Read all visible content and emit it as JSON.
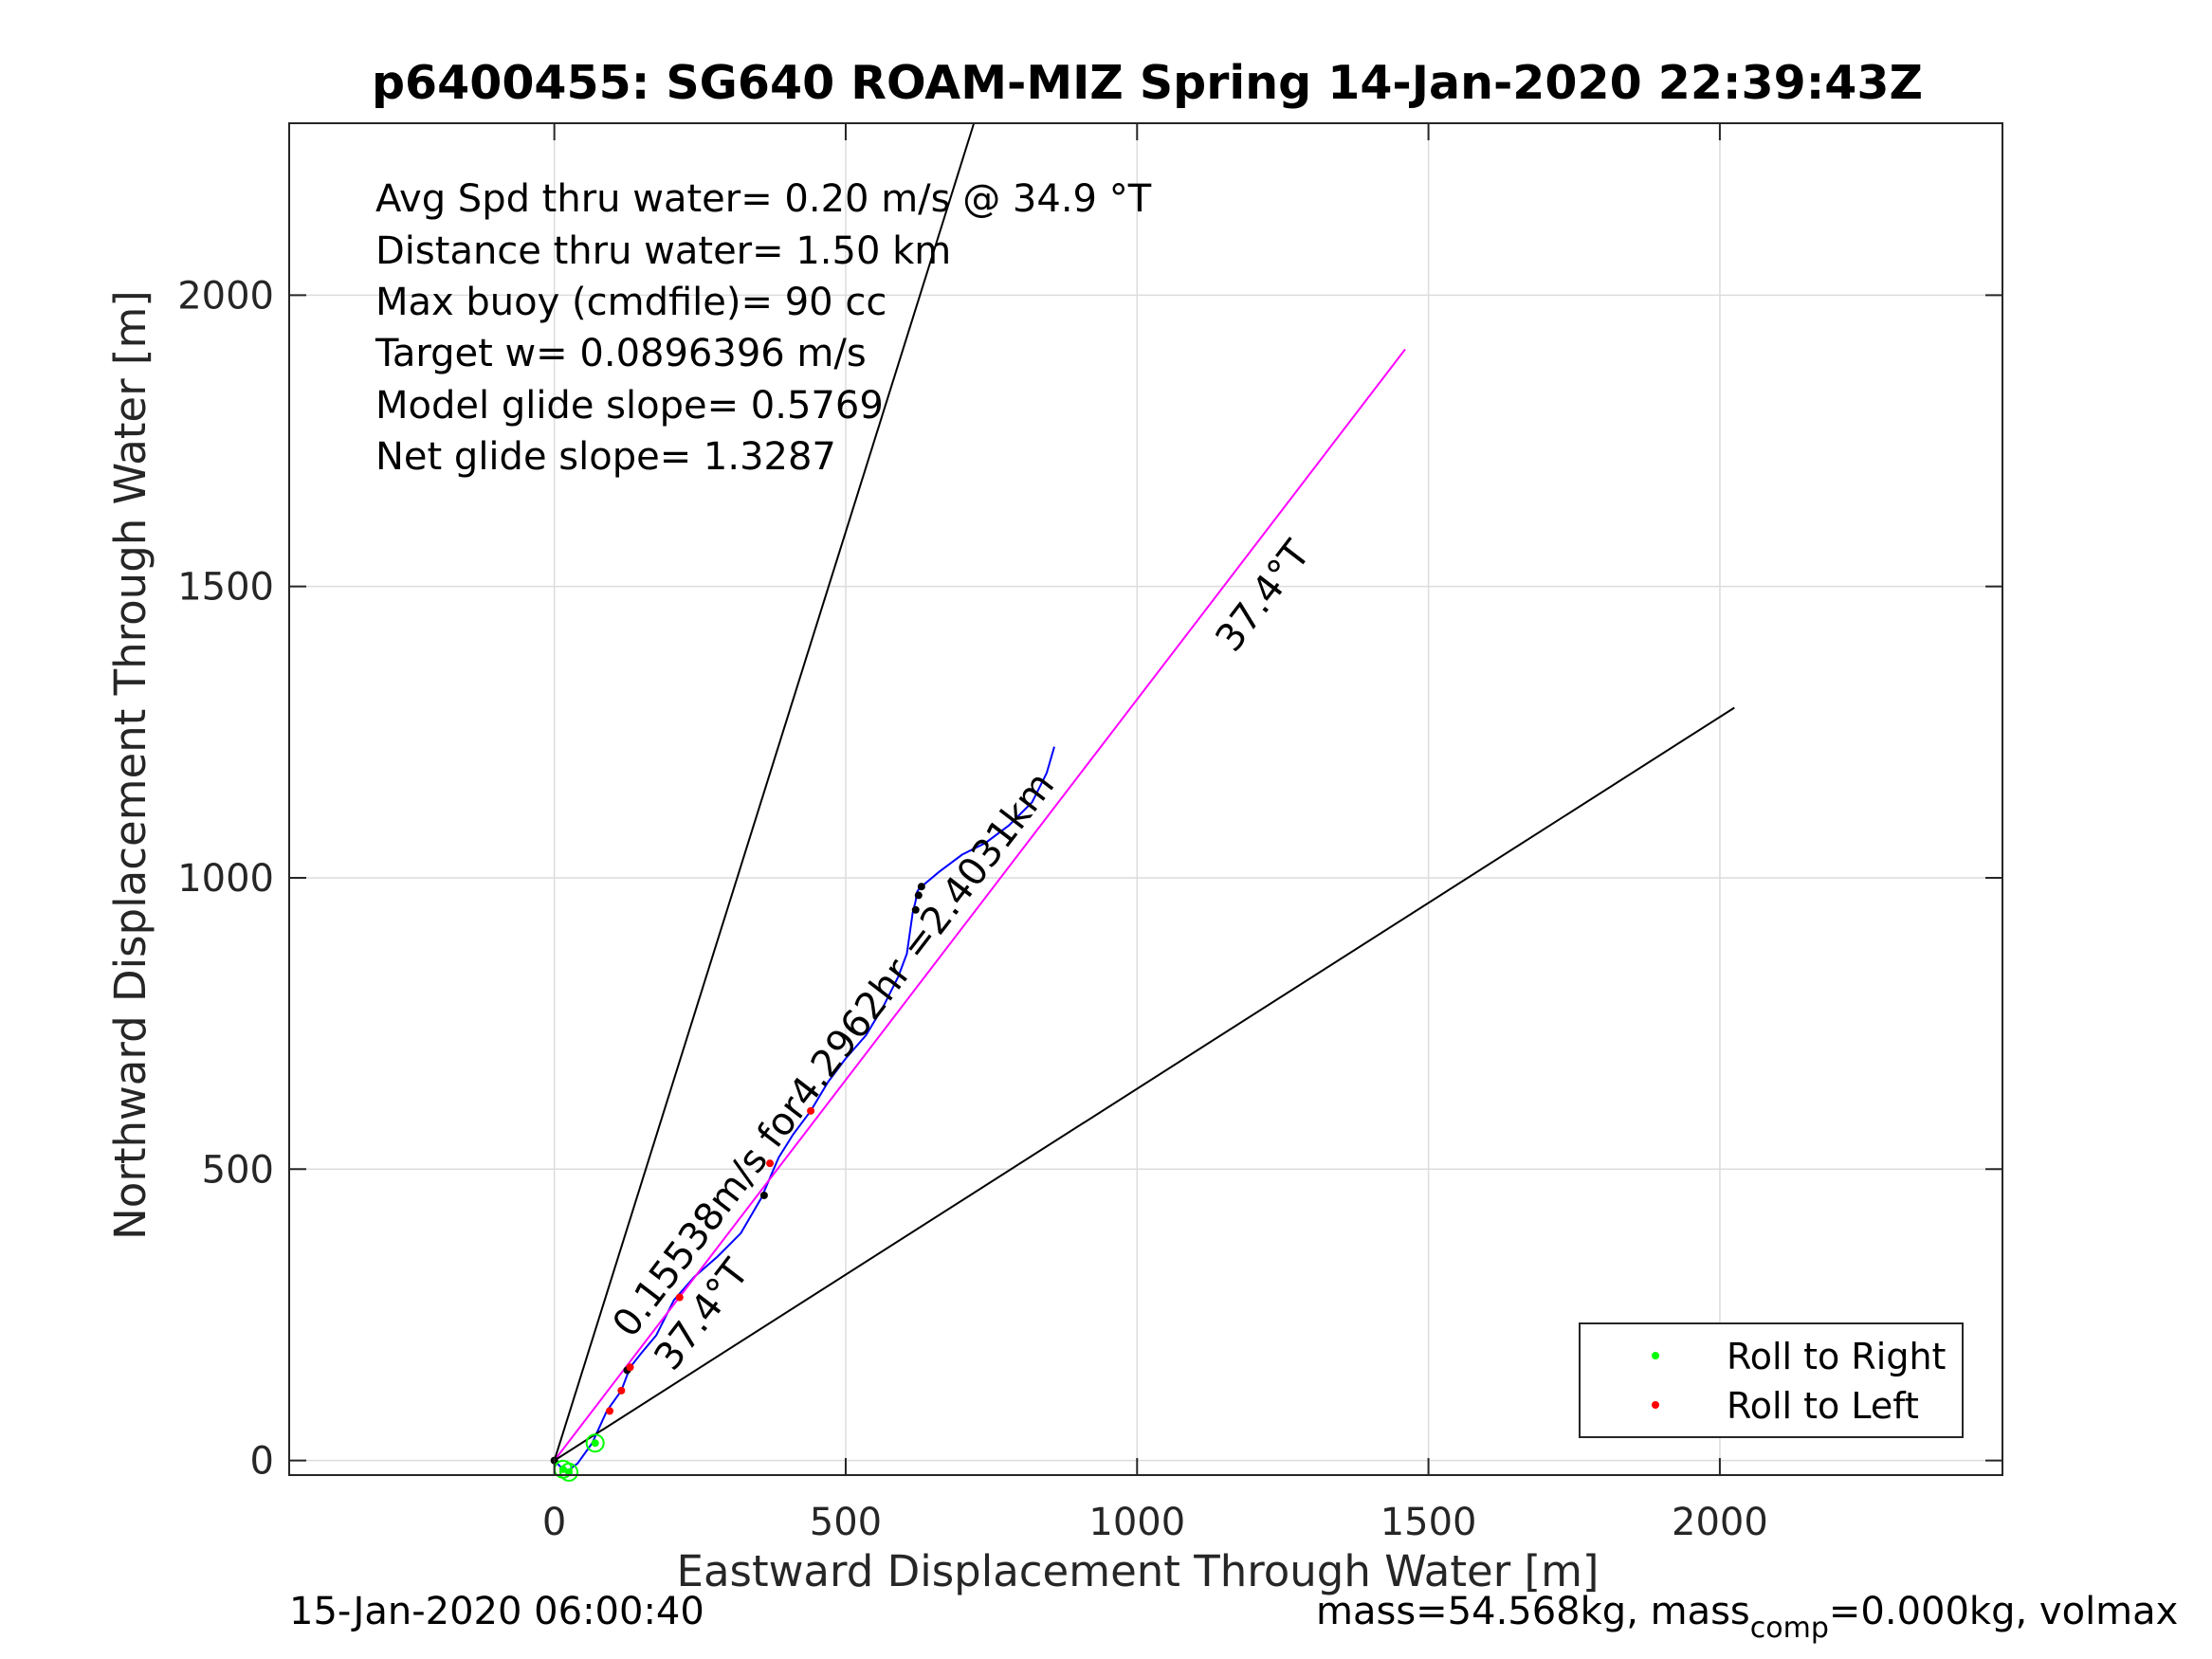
{
  "chart_data": {
    "type": "line",
    "title": "p6400455: SG640 ROAM-MIZ Spring 14-Jan-2020 22:39:43Z",
    "xlabel": "Eastward Displacement Through Water [m]",
    "ylabel": "Northward Displacement Through Water [m]",
    "xlim": [
      -455,
      2485
    ],
    "ylim": [
      -25,
      2295
    ],
    "xticks": [
      0,
      500,
      1000,
      1500,
      2000
    ],
    "yticks": [
      0,
      500,
      1000,
      1500,
      2000
    ],
    "grid": true,
    "legend_position": "bottom-right",
    "legend": [
      {
        "label": "Roll to Right",
        "color": "#00ff00"
      },
      {
        "label": "Roll to Left",
        "color": "#ff0000"
      }
    ],
    "annotations": [
      "Avg Spd thru water=  0.20 m/s @  34.9 °T",
      "Distance thru water=  1.50 km",
      "Max buoy (cmdfile)= 90 cc",
      "Target w= 0.0896396 m/s",
      "Model glide slope= 0.5769",
      "Net glide slope= 1.3287"
    ],
    "line_labels": {
      "heading_upper": "37.4°T",
      "heading_lower": "37.4°T",
      "speed_label": "0.15538m/s for4.2962hr =2.4031km"
    },
    "series": [
      {
        "color": "#0000ff",
        "x": [
          0,
          10,
          20,
          40,
          65,
          90,
          115,
          130,
          150,
          175,
          205,
          240,
          280,
          320,
          355,
          385,
          410,
          440,
          470,
          500,
          535,
          565,
          590,
          605,
          615,
          620,
          622,
          625,
          630,
          660,
          700,
          740,
          780,
          820,
          845,
          858
        ],
        "y": [
          0,
          -10,
          -20,
          -5,
          30,
          85,
          120,
          160,
          185,
          215,
          275,
          315,
          350,
          390,
          450,
          520,
          560,
          600,
          650,
          690,
          730,
          780,
          830,
          870,
          940,
          960,
          975,
          980,
          985,
          1010,
          1040,
          1060,
          1090,
          1130,
          1180,
          1225
        ]
      },
      {
        "color": "#ff00ff",
        "x": [
          0,
          1460
        ],
        "y": [
          0,
          1907
        ]
      },
      {
        "color": "#000000",
        "x": [
          0,
          720
        ],
        "y": [
          0,
          2295
        ]
      },
      {
        "color": "#000000",
        "x": [
          0,
          2025
        ],
        "y": [
          0,
          1292
        ]
      }
    ],
    "markers": {
      "roll_right": {
        "color": "#00ff00",
        "x": [
          15,
          25,
          70
        ],
        "y": [
          -15,
          -20,
          30
        ]
      },
      "roll_left": {
        "color": "#ff0000",
        "x": [
          95,
          115,
          130,
          215,
          370,
          440
        ],
        "y": [
          85,
          120,
          160,
          280,
          510,
          600
        ]
      },
      "dive_points": {
        "color": "#000000",
        "x": [
          0,
          125,
          360,
          620,
          625,
          630
        ],
        "y": [
          0,
          155,
          455,
          945,
          970,
          985
        ]
      }
    }
  },
  "footer": {
    "timestamp": "15-Jan-2020 06:00:40",
    "mass_pre": "mass=54.568kg, mass",
    "mass_sub": "comp",
    "mass_post": "=0.000kg, volmax"
  }
}
